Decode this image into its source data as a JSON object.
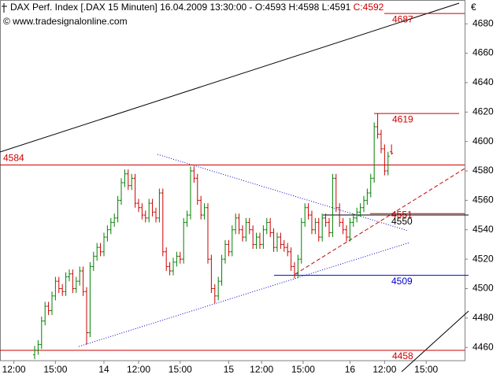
{
  "chart_data": {
    "type": "ohlc",
    "title": "DAX Perf. Index [.DAX  15 Minuten] 16.04.2009 13:30:00 - O:4593 H:4598 L:4591",
    "title_close": "C:4592",
    "copyright": "© www.tradesignalonline.com",
    "currency": "€",
    "up_color": "#008000",
    "down_color": "#cc0000",
    "ylim": [
      4451,
      4686
    ],
    "yticks": [
      4460,
      4480,
      4500,
      4520,
      4540,
      4560,
      4580,
      4600,
      4620,
      4640,
      4660,
      4680
    ],
    "xlim": [
      0,
      134.1
    ],
    "xticks": [
      {
        "value": 4,
        "label": "12:00"
      },
      {
        "value": 16,
        "label": "15:00"
      },
      {
        "value": 30,
        "label": "14"
      },
      {
        "value": 40,
        "label": "12:00"
      },
      {
        "value": 52,
        "label": "15:00"
      },
      {
        "value": 66,
        "label": "15"
      },
      {
        "value": 75.5,
        "label": "12:00"
      },
      {
        "value": 87.5,
        "label": "15:00"
      },
      {
        "value": 101,
        "label": "16"
      },
      {
        "value": 111,
        "label": "12:00"
      },
      {
        "value": 123,
        "label": "15:00"
      }
    ],
    "levels": [
      {
        "value": 4687,
        "color": "#cc0000"
      },
      {
        "value": 4619,
        "color": "#cc0000"
      },
      {
        "value": 4584,
        "color": "#cc0000"
      },
      {
        "value": 4551,
        "color": "#cc0000"
      },
      {
        "value": 4550,
        "color": "#000000"
      },
      {
        "value": 4509,
        "color": "#0000cc"
      },
      {
        "value": 4458,
        "color": "#cc0000"
      }
    ],
    "x": [
      10,
      11,
      12,
      13,
      14,
      15,
      16,
      17,
      18,
      19,
      20,
      21,
      22,
      23,
      24,
      25,
      26,
      27,
      28,
      29,
      30,
      31,
      32,
      33,
      34,
      35,
      36,
      37,
      38,
      39,
      40,
      41,
      42,
      43,
      44,
      45,
      46,
      47,
      48,
      49,
      50,
      51,
      52,
      53,
      54,
      55,
      56,
      57,
      58,
      59,
      60,
      61,
      62,
      63,
      64,
      65,
      66,
      67,
      68,
      69,
      70,
      71,
      72,
      73,
      74,
      75,
      76,
      77,
      78,
      79,
      80,
      81,
      82,
      83,
      84,
      85,
      86,
      87,
      88,
      89,
      90,
      91,
      92,
      93,
      94,
      95,
      96,
      97,
      98,
      99,
      100,
      101,
      102,
      103,
      104,
      105,
      106,
      107,
      108,
      109,
      110,
      111,
      112,
      113
    ],
    "open": [
      4455,
      4458,
      4462,
      4478,
      4488,
      4485,
      4495,
      4505,
      4500,
      4498,
      4508,
      4510,
      4500,
      4505,
      4512,
      4498,
      4470,
      4515,
      4522,
      4528,
      4525,
      4535,
      4540,
      4545,
      4548,
      4560,
      4572,
      4578,
      4570,
      4575,
      4558,
      4555,
      4550,
      4548,
      4558,
      4552,
      4548,
      4565,
      4525,
      4515,
      4512,
      4518,
      4522,
      4520,
      4545,
      4550,
      4580,
      4575,
      4560,
      4550,
      4555,
      4520,
      4500,
      4495,
      4505,
      4520,
      4530,
      4525,
      4540,
      4548,
      4540,
      4535,
      4545,
      4540,
      4530,
      4535,
      4530,
      4540,
      4545,
      4538,
      4528,
      4535,
      4530,
      4528,
      4525,
      4515,
      4510,
      4520,
      4545,
      4555,
      4550,
      4540,
      4545,
      4535,
      4548,
      4545,
      4538,
      4575,
      4555,
      4545,
      4540,
      4535,
      4545,
      4548,
      4552,
      4555,
      4560,
      4565,
      4575,
      4610,
      4605,
      4595,
      4580,
      4593
    ],
    "high": [
      4461,
      4465,
      4481,
      4491,
      4491,
      4498,
      4508,
      4508,
      4503,
      4511,
      4513,
      4513,
      4508,
      4515,
      4515,
      4501,
      4518,
      4525,
      4531,
      4531,
      4538,
      4543,
      4548,
      4551,
      4563,
      4575,
      4581,
      4581,
      4578,
      4578,
      4561,
      4558,
      4553,
      4561,
      4561,
      4555,
      4568,
      4568,
      4528,
      4518,
      4521,
      4525,
      4525,
      4548,
      4553,
      4583,
      4583,
      4578,
      4563,
      4558,
      4558,
      4523,
      4503,
      4508,
      4523,
      4533,
      4533,
      4543,
      4551,
      4551,
      4543,
      4548,
      4548,
      4543,
      4538,
      4538,
      4543,
      4548,
      4548,
      4541,
      4538,
      4538,
      4533,
      4531,
      4528,
      4518,
      4523,
      4548,
      4558,
      4558,
      4553,
      4548,
      4548,
      4551,
      4551,
      4548,
      4578,
      4578,
      4558,
      4548,
      4543,
      4548,
      4551,
      4555,
      4558,
      4563,
      4568,
      4578,
      4613,
      4619,
      4608,
      4598,
      4593,
      4598
    ],
    "low": [
      4452,
      4455,
      4459,
      4475,
      4482,
      4482,
      4492,
      4497,
      4495,
      4495,
      4505,
      4497,
      4497,
      4502,
      4495,
      4462,
      4467,
      4512,
      4519,
      4522,
      4522,
      4532,
      4537,
      4542,
      4545,
      4557,
      4569,
      4567,
      4567,
      4555,
      4552,
      4547,
      4545,
      4545,
      4549,
      4545,
      4545,
      4522,
      4512,
      4509,
      4509,
      4515,
      4517,
      4517,
      4542,
      4547,
      4572,
      4557,
      4547,
      4547,
      4517,
      4497,
      4490,
      4492,
      4502,
      4517,
      4522,
      4522,
      4537,
      4537,
      4532,
      4532,
      4537,
      4527,
      4527,
      4527,
      4527,
      4537,
      4535,
      4525,
      4525,
      4527,
      4525,
      4522,
      4512,
      4507,
      4507,
      4517,
      4542,
      4547,
      4537,
      4537,
      4532,
      4532,
      4542,
      4535,
      4535,
      4552,
      4542,
      4537,
      4532,
      4532,
      4542,
      4545,
      4549,
      4552,
      4557,
      4562,
      4572,
      4602,
      4592,
      4577,
      4577,
      4591
    ],
    "close": [
      4458,
      4462,
      4478,
      4488,
      4485,
      4495,
      4505,
      4500,
      4498,
      4508,
      4510,
      4500,
      4505,
      4512,
      4498,
      4470,
      4515,
      4522,
      4528,
      4525,
      4535,
      4540,
      4545,
      4548,
      4560,
      4572,
      4578,
      4570,
      4575,
      4558,
      4555,
      4550,
      4548,
      4558,
      4552,
      4548,
      4565,
      4525,
      4515,
      4512,
      4518,
      4522,
      4520,
      4545,
      4550,
      4580,
      4575,
      4560,
      4550,
      4555,
      4520,
      4500,
      4495,
      4505,
      4520,
      4530,
      4525,
      4540,
      4548,
      4540,
      4535,
      4545,
      4540,
      4530,
      4535,
      4530,
      4540,
      4545,
      4538,
      4528,
      4535,
      4530,
      4528,
      4525,
      4515,
      4510,
      4520,
      4545,
      4555,
      4550,
      4540,
      4545,
      4535,
      4548,
      4545,
      4538,
      4575,
      4555,
      4545,
      4540,
      4535,
      4545,
      4548,
      4552,
      4555,
      4560,
      4565,
      4575,
      4610,
      4605,
      4595,
      4580,
      4590,
      4592
    ]
  }
}
